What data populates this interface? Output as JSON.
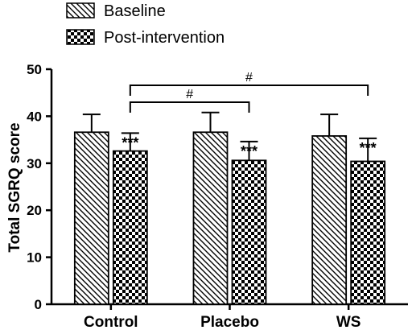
{
  "chart_data": {
    "type": "bar",
    "ylabel": "Total SGRQ score",
    "ylim": [
      0,
      50
    ],
    "yticks": [
      0,
      10,
      20,
      30,
      40,
      50
    ],
    "categories": [
      "Control",
      "Placebo",
      "WS"
    ],
    "series": [
      {
        "name": "Baseline",
        "pattern": "diagonal-hatch",
        "values": [
          36.6,
          36.6,
          35.8
        ],
        "errors": [
          3.8,
          4.2,
          4.6
        ]
      },
      {
        "name": "Post-intervention",
        "pattern": "checkerboard",
        "values": [
          32.6,
          30.6,
          30.4
        ],
        "errors": [
          3.8,
          4.0,
          4.9
        ]
      }
    ],
    "annotations": {
      "star_label": "***",
      "hash_label": "#",
      "brackets": [
        {
          "from": "Control.Post-intervention",
          "to": "Placebo.Post-intervention",
          "label": "#"
        },
        {
          "from": "Control.Post-intervention",
          "to": "WS.Post-intervention",
          "label": "#"
        }
      ]
    },
    "legend_position": "top-left",
    "grid": false,
    "colors": {
      "stroke": "#000000",
      "fill_background": "#ffffff"
    }
  }
}
